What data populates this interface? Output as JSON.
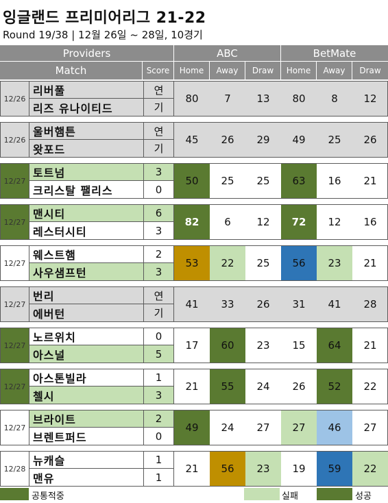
{
  "title": "잉글랜드 프리미어리그 21-22",
  "subtitle": "Round 19/38 | 12월 26일 ~ 28일, 10경기",
  "header": {
    "providers_label": "Providers",
    "match_label": "Match",
    "score_label": "Score",
    "providers": [
      {
        "name": "ABC",
        "cols": [
          "Home",
          "Away",
          "Draw"
        ]
      },
      {
        "name": "BetMate",
        "cols": [
          "Home",
          "Away",
          "Draw"
        ]
      }
    ]
  },
  "colors": {
    "header_bg": "#8c8c8c",
    "postponed_bg": "#d9d9d9",
    "success_dark": "#5a7a31",
    "fail_light": "#c5e0b3",
    "gold": "#bf8f00",
    "blue": "#2e75b6",
    "light_blue": "#9dc3e6"
  },
  "matches": [
    {
      "date": "12/26",
      "home": "리버풀",
      "away": "리즈 유나이티드",
      "home_score": "연",
      "away_score": "기",
      "postponed": true,
      "abc": [
        80,
        7,
        13
      ],
      "betmate": [
        80,
        8,
        12
      ],
      "bold": [],
      "winner": null,
      "date_green": false,
      "cell_colors": [
        null,
        null,
        null,
        null,
        null,
        null
      ]
    },
    {
      "date": "12/26",
      "home": "울버햄튼",
      "away": "왓포드",
      "home_score": "연",
      "away_score": "기",
      "postponed": true,
      "abc": [
        45,
        26,
        29
      ],
      "betmate": [
        49,
        25,
        26
      ],
      "bold": [],
      "winner": null,
      "date_green": false,
      "cell_colors": [
        null,
        null,
        null,
        null,
        null,
        null
      ]
    },
    {
      "date": "12/27",
      "home": "토트넘",
      "away": "크리스탈 팰리스",
      "home_score": "3",
      "away_score": "0",
      "postponed": false,
      "abc": [
        50,
        25,
        25
      ],
      "betmate": [
        63,
        16,
        21
      ],
      "bold": [],
      "winner": "home",
      "date_green": true,
      "cell_colors": [
        "success_dark",
        null,
        null,
        "success_dark",
        null,
        null
      ]
    },
    {
      "date": "12/27",
      "home": "맨시티",
      "away": "레스터시티",
      "home_score": "6",
      "away_score": "3",
      "postponed": false,
      "abc": [
        82,
        6,
        12
      ],
      "betmate": [
        72,
        12,
        16
      ],
      "bold": [
        0,
        3
      ],
      "winner": "home",
      "date_green": true,
      "cell_colors": [
        "success_dark",
        null,
        null,
        "success_dark",
        null,
        null
      ]
    },
    {
      "date": "12/27",
      "home": "웨스트햄",
      "away": "사우샘프턴",
      "home_score": "2",
      "away_score": "3",
      "postponed": false,
      "abc": [
        53,
        22,
        25
      ],
      "betmate": [
        56,
        23,
        21
      ],
      "bold": [],
      "winner": "away",
      "date_green": false,
      "cell_colors": [
        "gold",
        "fail_light",
        null,
        "blue",
        "fail_light",
        null
      ]
    },
    {
      "date": "12/27",
      "home": "번리",
      "away": "에버턴",
      "home_score": "연",
      "away_score": "기",
      "postponed": true,
      "abc": [
        41,
        33,
        26
      ],
      "betmate": [
        31,
        41,
        28
      ],
      "bold": [],
      "winner": null,
      "date_green": false,
      "cell_colors": [
        null,
        null,
        null,
        null,
        null,
        null
      ]
    },
    {
      "date": "12/27",
      "home": "노르위치",
      "away": "아스널",
      "home_score": "0",
      "away_score": "5",
      "postponed": false,
      "abc": [
        17,
        60,
        23
      ],
      "betmate": [
        15,
        64,
        21
      ],
      "bold": [],
      "winner": "away",
      "date_green": true,
      "cell_colors": [
        null,
        "success_dark",
        null,
        null,
        "success_dark",
        null
      ]
    },
    {
      "date": "12/27",
      "home": "아스톤빌라",
      "away": "첼시",
      "home_score": "1",
      "away_score": "3",
      "postponed": false,
      "abc": [
        21,
        55,
        24
      ],
      "betmate": [
        26,
        52,
        22
      ],
      "bold": [],
      "winner": "away",
      "date_green": true,
      "cell_colors": [
        null,
        "success_dark",
        null,
        null,
        "success_dark",
        null
      ]
    },
    {
      "date": "12/27",
      "home": "브라이트",
      "away": "브렌트퍼드",
      "home_score": "2",
      "away_score": "0",
      "postponed": false,
      "abc": [
        49,
        24,
        27
      ],
      "betmate": [
        27,
        46,
        27
      ],
      "bold": [],
      "winner": "home",
      "date_green": false,
      "cell_colors": [
        "success_dark",
        null,
        null,
        "fail_light",
        "light_blue",
        null
      ]
    },
    {
      "date": "12/28",
      "home": "뉴캐슬",
      "away": "맨유",
      "home_score": "1",
      "away_score": "1",
      "postponed": false,
      "abc": [
        21,
        56,
        23
      ],
      "betmate": [
        19,
        59,
        22
      ],
      "bold": [],
      "winner": null,
      "date_green": false,
      "cell_colors": [
        null,
        "gold",
        "fail_light",
        null,
        "blue",
        "fail_light"
      ]
    }
  ],
  "legend": [
    {
      "label": "공통적중",
      "color": "success_dark"
    },
    {
      "label": "실패",
      "color": "fail_light"
    },
    {
      "label": "성공",
      "color": "success_dark"
    }
  ]
}
